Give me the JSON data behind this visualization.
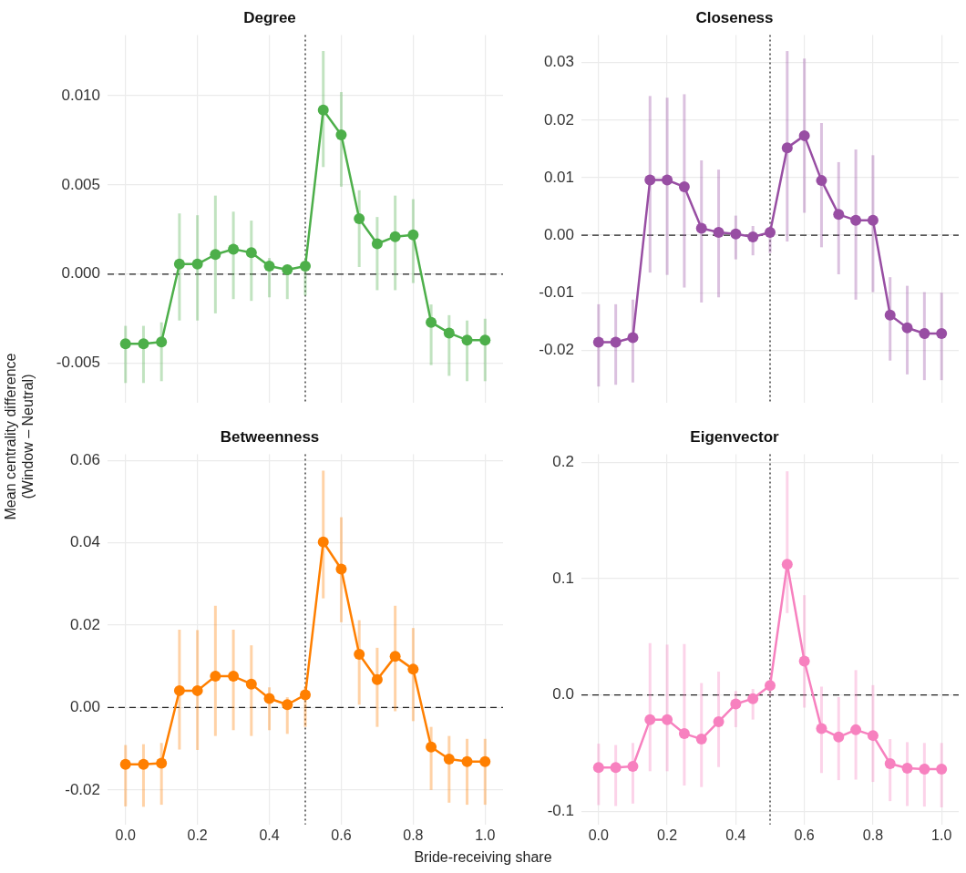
{
  "chart_data": [
    {
      "type": "line",
      "title": "Degree",
      "ylabel": "Mean centrality difference\n(Window – Neutral)",
      "x": [
        0,
        0.05,
        0.1,
        0.15,
        0.2,
        0.25,
        0.3,
        0.35,
        0.4,
        0.45,
        0.5,
        0.55,
        0.6,
        0.65,
        0.7,
        0.75,
        0.8,
        0.85,
        0.9,
        0.95,
        1.0
      ],
      "series": [
        {
          "color": "#4daf4a",
          "values": [
            -0.0039,
            -0.0039,
            -0.0038,
            0.00056,
            0.00056,
            0.0011,
            0.0014,
            0.0012,
            0.00045,
            0.00025,
            0.00045,
            0.0092,
            0.0078,
            0.0031,
            0.0017,
            0.0021,
            0.0022,
            -0.0027,
            -0.0033,
            -0.0037,
            -0.0037
          ],
          "errors": [
            [
              -0.0061,
              -0.0029
            ],
            [
              -0.0061,
              -0.0029
            ],
            [
              -0.006,
              -0.0027
            ],
            [
              -0.0026,
              0.0034
            ],
            [
              -0.0026,
              0.0033
            ],
            [
              -0.0022,
              0.0044
            ],
            [
              -0.0014,
              0.0035
            ],
            [
              -0.0015,
              0.003
            ],
            [
              -0.0013,
              0.0009
            ],
            [
              -0.0014,
              0.0005
            ],
            [
              -0.0012,
              0.0006
            ],
            [
              0.006,
              0.0125
            ],
            [
              0.0049,
              0.0102
            ],
            [
              0.0004,
              0.0047
            ],
            [
              -0.0009,
              0.0032
            ],
            [
              -0.0009,
              0.0044
            ],
            [
              -0.0005,
              0.0042
            ],
            [
              -0.0051,
              -0.0017
            ],
            [
              -0.0057,
              -0.0023
            ],
            [
              -0.006,
              -0.0026
            ],
            [
              -0.006,
              -0.0025
            ]
          ]
        }
      ],
      "marker": "circle",
      "line_style": "solid",
      "grid": true,
      "tick_labels": "y",
      "xlim": [
        -0.05,
        1.05
      ],
      "xticks": [
        {
          "value": 0,
          "label": null
        },
        {
          "value": 0.2,
          "label": null
        },
        {
          "value": 0.4,
          "label": null
        },
        {
          "value": 0.6,
          "label": null
        },
        {
          "value": 0.8,
          "label": null
        },
        {
          "value": 1,
          "label": null
        }
      ],
      "ylim": [
        -0.0072,
        0.0134
      ],
      "yticks": [
        {
          "value": -0.005,
          "label": "-0.005"
        },
        {
          "value": 0,
          "label": "0.000"
        },
        {
          "value": 0.005,
          "label": "0.005"
        },
        {
          "value": 0.01,
          "label": "0.010"
        }
      ],
      "ref_lines": [
        {
          "axis": "y",
          "value": 0,
          "color": "#222222",
          "line_style": "dashed"
        },
        {
          "axis": "x",
          "value": 0.5,
          "color": "#222222",
          "line_style": "dotted"
        }
      ]
    },
    {
      "type": "line",
      "title": "Closeness",
      "x": [
        0,
        0.05,
        0.1,
        0.15,
        0.2,
        0.25,
        0.3,
        0.35,
        0.4,
        0.45,
        0.5,
        0.55,
        0.6,
        0.65,
        0.7,
        0.75,
        0.8,
        0.85,
        0.9,
        0.95,
        1.0
      ],
      "series": [
        {
          "color": "#984ea3",
          "values": [
            -0.0186,
            -0.0186,
            -0.0178,
            0.0096,
            0.0096,
            0.0084,
            0.0012,
            0.0005,
            0.0002,
            -0.0003,
            0.0005,
            0.0152,
            0.0173,
            0.0095,
            0.0036,
            0.0026,
            0.0026,
            -0.0139,
            -0.0161,
            -0.0171,
            -0.0171
          ],
          "errors": [
            [
              -0.0263,
              -0.012
            ],
            [
              -0.026,
              -0.012
            ],
            [
              -0.0256,
              -0.0112
            ],
            [
              -0.0065,
              0.0242
            ],
            [
              -0.0069,
              0.0239
            ],
            [
              -0.0091,
              0.0245
            ],
            [
              -0.0117,
              0.013
            ],
            [
              -0.0108,
              0.0114
            ],
            [
              -0.0042,
              0.0034
            ],
            [
              -0.0035,
              0.0016
            ],
            [
              -0.0031,
              0.0009
            ],
            [
              -0.0011,
              0.032
            ],
            [
              0.0039,
              0.0307
            ],
            [
              -0.0021,
              0.0195
            ],
            [
              -0.0068,
              0.0127
            ],
            [
              -0.0112,
              0.0149
            ],
            [
              -0.0099,
              0.0139
            ],
            [
              -0.0218,
              -0.0073
            ],
            [
              -0.0242,
              -0.0088
            ],
            [
              -0.0252,
              -0.0099
            ],
            [
              -0.0252,
              -0.01
            ]
          ]
        }
      ],
      "marker": "circle",
      "line_style": "solid",
      "grid": true,
      "tick_labels": "y",
      "xlim": [
        -0.05,
        1.05
      ],
      "xticks": [
        {
          "value": 0,
          "label": null
        },
        {
          "value": 0.2,
          "label": null
        },
        {
          "value": 0.4,
          "label": null
        },
        {
          "value": 0.6,
          "label": null
        },
        {
          "value": 0.8,
          "label": null
        },
        {
          "value": 1,
          "label": null
        }
      ],
      "ylim": [
        -0.0291,
        0.0348
      ],
      "yticks": [
        {
          "value": -0.02,
          "label": "-0.02"
        },
        {
          "value": -0.01,
          "label": "-0.01"
        },
        {
          "value": 0,
          "label": "0.00"
        },
        {
          "value": 0.01,
          "label": "0.01"
        },
        {
          "value": 0.02,
          "label": "0.02"
        },
        {
          "value": 0.03,
          "label": "0.03"
        }
      ],
      "ref_lines": [
        {
          "axis": "y",
          "value": 0,
          "color": "#222222",
          "line_style": "dashed"
        },
        {
          "axis": "x",
          "value": 0.5,
          "color": "#222222",
          "line_style": "dotted"
        }
      ]
    },
    {
      "type": "line",
      "title": "Betweenness",
      "xlabel": "Bride-receiving share",
      "x": [
        0,
        0.05,
        0.1,
        0.15,
        0.2,
        0.25,
        0.3,
        0.35,
        0.4,
        0.45,
        0.5,
        0.55,
        0.6,
        0.65,
        0.7,
        0.75,
        0.8,
        0.85,
        0.9,
        0.95,
        1.0
      ],
      "series": [
        {
          "color": "#ff7f00",
          "values": [
            -0.0138,
            -0.0138,
            -0.0135,
            0.0041,
            0.0041,
            0.0076,
            0.0076,
            0.0057,
            0.0022,
            0.0007,
            0.0031,
            0.0402,
            0.0336,
            0.0129,
            0.0068,
            0.0124,
            0.0093,
            -0.0096,
            -0.0125,
            -0.0131,
            -0.0131
          ],
          "errors": [
            [
              -0.024,
              -0.0091
            ],
            [
              -0.0241,
              -0.0089
            ],
            [
              -0.0236,
              -0.0086
            ],
            [
              -0.0102,
              0.0189
            ],
            [
              -0.0103,
              0.0188
            ],
            [
              -0.0069,
              0.0247
            ],
            [
              -0.0055,
              0.0189
            ],
            [
              -0.0069,
              0.0151
            ],
            [
              -0.0055,
              0.0049
            ],
            [
              -0.0064,
              0.0025
            ],
            [
              -0.0047,
              0.0051
            ],
            [
              0.0265,
              0.0575
            ],
            [
              0.0207,
              0.0462
            ],
            [
              0.0007,
              0.0212
            ],
            [
              -0.0047,
              0.0145
            ],
            [
              -0.0009,
              0.0247
            ],
            [
              -0.0033,
              0.0193
            ],
            [
              -0.02,
              -0.0047
            ],
            [
              -0.0231,
              -0.0069
            ],
            [
              -0.0236,
              -0.0076
            ],
            [
              -0.0236,
              -0.0076
            ]
          ]
        }
      ],
      "marker": "circle",
      "line_style": "solid",
      "grid": true,
      "xlim": [
        -0.05,
        1.05
      ],
      "xticks": [
        {
          "value": 0,
          "label": "0.0"
        },
        {
          "value": 0.2,
          "label": "0.2"
        },
        {
          "value": 0.4,
          "label": "0.4"
        },
        {
          "value": 0.6,
          "label": "0.6"
        },
        {
          "value": 0.8,
          "label": "0.8"
        },
        {
          "value": 1,
          "label": "1.0"
        }
      ],
      "ylim": [
        -0.0284,
        0.0615
      ],
      "yticks": [
        {
          "value": -0.02,
          "label": "-0.02"
        },
        {
          "value": 0,
          "label": "0.00"
        },
        {
          "value": 0.02,
          "label": "0.02"
        },
        {
          "value": 0.04,
          "label": "0.04"
        },
        {
          "value": 0.06,
          "label": "0.06"
        }
      ],
      "ref_lines": [
        {
          "axis": "y",
          "value": 0,
          "color": "#222222",
          "line_style": "dashed"
        },
        {
          "axis": "x",
          "value": 0.5,
          "color": "#222222",
          "line_style": "dotted"
        }
      ]
    },
    {
      "type": "line",
      "title": "Eigenvector",
      "x": [
        0,
        0.05,
        0.1,
        0.15,
        0.2,
        0.25,
        0.3,
        0.35,
        0.4,
        0.45,
        0.5,
        0.55,
        0.6,
        0.65,
        0.7,
        0.75,
        0.8,
        0.85,
        0.9,
        0.95,
        1.0
      ],
      "series": [
        {
          "color": "#f781bf",
          "values": [
            -0.0624,
            -0.0624,
            -0.0613,
            -0.0211,
            -0.0211,
            -0.0332,
            -0.0379,
            -0.0229,
            -0.0077,
            -0.0031,
            0.0082,
            0.1124,
            0.0291,
            -0.0289,
            -0.0361,
            -0.0299,
            -0.0348,
            -0.059,
            -0.0629,
            -0.0637,
            -0.0637
          ],
          "errors": [
            [
              -0.0946,
              -0.0418
            ],
            [
              -0.0954,
              -0.043
            ],
            [
              -0.0933,
              -0.0412
            ],
            [
              -0.0655,
              0.0446
            ],
            [
              -0.0655,
              0.0433
            ],
            [
              -0.0778,
              0.0438
            ],
            [
              -0.0791,
              0.0103
            ],
            [
              -0.0619,
              0.0201
            ],
            [
              -0.0276,
              0.0034
            ],
            [
              -0.0211,
              0.0052
            ],
            [
              -0.001,
              0.0124
            ],
            [
              0.0704,
              0.1923
            ],
            [
              -0.0108,
              0.0858
            ],
            [
              -0.067,
              0.0072
            ],
            [
              -0.0732,
              -0.0018
            ],
            [
              -0.0727,
              0.0214
            ],
            [
              -0.0747,
              0.0085
            ],
            [
              -0.0912,
              -0.0379
            ],
            [
              -0.0954,
              -0.0405
            ],
            [
              -0.0959,
              -0.0412
            ],
            [
              -0.0966,
              -0.0412
            ]
          ]
        }
      ],
      "marker": "circle",
      "line_style": "solid",
      "grid": true,
      "xlim": [
        -0.05,
        1.05
      ],
      "xticks": [
        {
          "value": 0,
          "label": "0.0"
        },
        {
          "value": 0.2,
          "label": "0.2"
        },
        {
          "value": 0.4,
          "label": "0.4"
        },
        {
          "value": 0.6,
          "label": "0.6"
        },
        {
          "value": 0.8,
          "label": "0.8"
        },
        {
          "value": 1,
          "label": "1.0"
        }
      ],
      "ylim": [
        -0.1113,
        0.207
      ],
      "yticks": [
        {
          "value": -0.1,
          "label": "-0.1"
        },
        {
          "value": 0,
          "label": "0.0"
        },
        {
          "value": 0.1,
          "label": "0.1"
        },
        {
          "value": 0.2,
          "label": "0.2"
        }
      ],
      "ref_lines": [
        {
          "axis": "y",
          "value": 0,
          "color": "#222222",
          "line_style": "dashed"
        },
        {
          "axis": "x",
          "value": 0.5,
          "color": "#222222",
          "line_style": "dotted"
        }
      ]
    }
  ]
}
